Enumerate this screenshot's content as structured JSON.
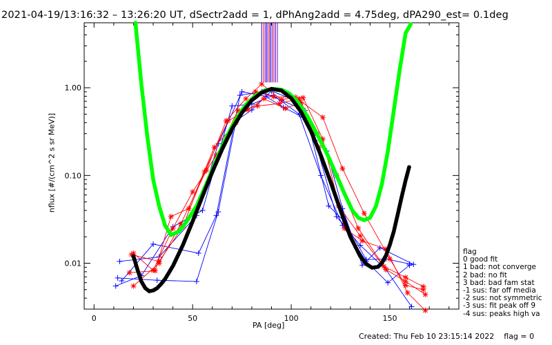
{
  "header": {
    "title": "2021-04-19/13:16:32 – 13:26:20 UT, dSectr2add = 1, dPhAng2add = 4.75deg, dPA290_est=    0.1deg"
  },
  "footer": {
    "created": "Created: Thu Feb 10 23:15:14 2022",
    "flag": "flag = 0"
  },
  "legend": {
    "title": "flag",
    "items": [
      " 0 good fit",
      " 1 bad: not converge",
      " 2 bad: no fit",
      " 3 bad: bad fam stat",
      "-1 sus: far off media",
      "-2 sus: not symmetric",
      "-3 sus: fit peak off 9",
      "-4 sus: peaks high va"
    ]
  },
  "chart_data": {
    "type": "line",
    "title": "2021-04-19/13:16:32 – 13:26:20 UT, dSectr2add = 1, dPhAng2add = 4.75deg, dPA290_est=    0.1deg",
    "xlabel": "PA [deg]",
    "ylabel": "nflux [#/(cm^2 s sr MeV)]",
    "xlim": [
      -5,
      185
    ],
    "ylim": [
      0.003,
      5.5
    ],
    "yscale": "log",
    "xticks": [
      0,
      50,
      100,
      150
    ],
    "xtick_labels": [
      "0",
      "50",
      "100",
      "150"
    ],
    "yticks": [
      0.01,
      0.1,
      1.0
    ],
    "ytick_labels": [
      "0.01",
      "0.10",
      "1.00"
    ],
    "colors": {
      "blue": "#0000ff",
      "red": "#ff0000",
      "green": "#00ff00",
      "black": "#000000",
      "purple": "#7a00cc"
    },
    "series": [
      {
        "name": "blue-1",
        "color": "blue",
        "x": [
          12,
          32,
          52,
          63,
          72,
          80,
          90,
          103,
          112,
          123,
          135,
          148,
          161
        ],
        "y": [
          0.0068,
          0.0064,
          0.0062,
          0.0385,
          0.42,
          0.56,
          0.92,
          0.7,
          0.25,
          0.034,
          0.016,
          0.0085,
          0.0032
        ]
      },
      {
        "name": "blue-2",
        "color": "blue",
        "x": [
          14,
          30,
          53,
          62,
          74,
          85,
          95,
          107,
          119,
          127,
          138,
          148,
          160
        ],
        "y": [
          0.0063,
          0.0165,
          0.013,
          0.035,
          0.82,
          0.9,
          0.72,
          0.55,
          0.045,
          0.03,
          0.011,
          0.0112,
          0.0098
        ]
      },
      {
        "name": "blue-3",
        "color": "blue",
        "x": [
          13,
          33,
          52,
          63,
          75,
          87,
          96,
          106,
          118,
          126,
          136,
          145,
          162
        ],
        "y": [
          0.0105,
          0.0118,
          0.035,
          0.23,
          0.9,
          0.8,
          0.6,
          0.46,
          0.19,
          0.042,
          0.0095,
          0.015,
          0.0097
        ]
      },
      {
        "name": "blue-4",
        "color": "blue",
        "x": [
          11,
          24,
          40,
          55,
          70,
          80,
          91,
          104,
          115,
          126,
          138,
          149,
          160
        ],
        "y": [
          0.0055,
          0.0072,
          0.026,
          0.04,
          0.62,
          0.65,
          0.82,
          0.5,
          0.1,
          0.027,
          0.0105,
          0.006,
          0.0095
        ]
      },
      {
        "name": "red-1",
        "color": "red",
        "x": [
          19,
          33,
          45,
          56,
          68,
          78,
          86,
          97,
          105,
          114,
          124,
          135,
          148,
          158,
          168
        ],
        "y": [
          0.0125,
          0.0105,
          0.026,
          0.11,
          0.42,
          0.56,
          0.75,
          0.58,
          0.68,
          0.21,
          0.045,
          0.0205,
          0.0085,
          0.0062,
          0.0044
        ]
      },
      {
        "name": "red-2",
        "color": "red",
        "x": [
          20,
          33,
          44,
          57,
          67,
          77,
          85,
          95,
          102,
          116,
          126,
          137,
          150,
          158,
          167
        ],
        "y": [
          0.0055,
          0.01,
          0.028,
          0.115,
          0.42,
          0.75,
          1.1,
          0.73,
          0.78,
          0.46,
          0.12,
          0.037,
          0.0112,
          0.0056,
          0.005
        ]
      },
      {
        "name": "red-3",
        "color": "red",
        "x": [
          18,
          31,
          39,
          48,
          61,
          72,
          82,
          91,
          106,
          116,
          127,
          136,
          148,
          159,
          168
        ],
        "y": [
          0.0078,
          0.0082,
          0.034,
          0.042,
          0.21,
          0.4,
          0.9,
          0.79,
          0.77,
          0.26,
          0.025,
          0.018,
          0.0145,
          0.0046,
          0.0029
        ]
      },
      {
        "name": "red-4",
        "color": "red",
        "x": [
          20,
          30,
          40,
          50,
          62,
          73,
          83,
          94,
          104,
          113,
          123,
          134,
          147,
          158,
          167
        ],
        "y": [
          0.013,
          0.0083,
          0.025,
          0.065,
          0.17,
          0.55,
          0.62,
          0.66,
          0.75,
          0.3,
          0.1,
          0.025,
          0.0092,
          0.0069,
          0.0054
        ]
      },
      {
        "name": "green-fit",
        "color": "green",
        "style": "thick-dotted",
        "x": [
          21,
          24,
          27,
          30,
          33,
          36,
          39,
          43,
          47,
          52,
          57,
          62,
          67,
          72,
          77,
          82,
          87,
          91,
          95,
          99,
          103,
          108,
          113,
          118,
          123,
          127,
          131,
          134,
          137,
          140,
          143,
          146,
          149,
          152,
          155,
          158,
          161
        ],
        "y": [
          5.5,
          1.1,
          0.28,
          0.09,
          0.045,
          0.027,
          0.021,
          0.023,
          0.03,
          0.045,
          0.08,
          0.15,
          0.27,
          0.44,
          0.64,
          0.82,
          0.94,
          0.97,
          0.95,
          0.86,
          0.7,
          0.48,
          0.3,
          0.18,
          0.1,
          0.062,
          0.04,
          0.033,
          0.031,
          0.033,
          0.045,
          0.08,
          0.19,
          0.55,
          1.6,
          4.2,
          5.5
        ]
      },
      {
        "name": "black-fit",
        "color": "black",
        "style": "thick-dotted",
        "x": [
          20,
          22,
          24,
          26,
          28,
          30,
          32,
          34,
          36,
          40,
          45,
          50,
          55,
          60,
          65,
          70,
          75,
          80,
          85,
          90,
          95,
          100,
          105,
          110,
          115,
          120,
          125,
          130,
          135,
          138,
          141,
          144,
          146,
          148,
          150,
          152,
          154,
          156,
          158,
          160
        ],
        "y": [
          0.012,
          0.0085,
          0.0062,
          0.0052,
          0.0048,
          0.0049,
          0.0052,
          0.0058,
          0.0066,
          0.0093,
          0.016,
          0.03,
          0.058,
          0.11,
          0.2,
          0.34,
          0.52,
          0.72,
          0.88,
          0.97,
          0.93,
          0.76,
          0.53,
          0.32,
          0.17,
          0.084,
          0.04,
          0.02,
          0.012,
          0.0098,
          0.0089,
          0.0091,
          0.0101,
          0.0122,
          0.0162,
          0.023,
          0.036,
          0.057,
          0.088,
          0.13
        ]
      },
      {
        "name": "peak-markers",
        "color": "purple",
        "style": "vertical-lines",
        "x": [
          85,
          86,
          86.8,
          87.5,
          88.2,
          89,
          89.6,
          90.4,
          91.2,
          92,
          93
        ],
        "y_from": 1.15,
        "y_to": 5.5
      }
    ]
  }
}
